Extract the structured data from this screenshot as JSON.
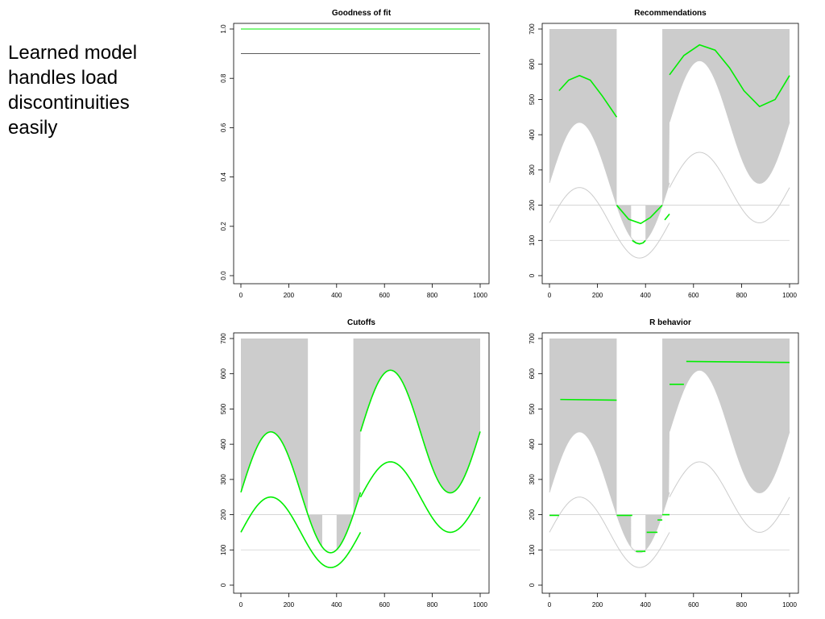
{
  "caption": {
    "lines": [
      "Learned model",
      "handles load",
      "discontinuities",
      "easily"
    ]
  },
  "colors": {
    "band": "#cccccc",
    "green": "#00ee00",
    "line_gray": "#444444",
    "light_curve": "#cccccc",
    "ref_line": "#d0d0d0",
    "axis": "#000000"
  },
  "chart_data": [
    {
      "type": "line",
      "title": "Goodness of fit",
      "xlim": [
        0,
        1000
      ],
      "ylim": [
        0,
        1
      ],
      "xticks": [
        "0",
        "200",
        "400",
        "600",
        "800",
        "1000"
      ],
      "yticks": [
        "0.0",
        "0.2",
        "0.4",
        "0.6",
        "0.8",
        "1.0"
      ],
      "series": [
        {
          "color": "green",
          "x": [
            0,
            1000
          ],
          "y": [
            1.0,
            1.0
          ]
        },
        {
          "color": "line_gray",
          "x": [
            0,
            1000
          ],
          "y": [
            0.9,
            0.9
          ]
        }
      ]
    },
    {
      "type": "area",
      "title": "Recommendations",
      "xlim": [
        0,
        1000
      ],
      "ylim": [
        0,
        700
      ],
      "xticks": [
        "0",
        "200",
        "400",
        "600",
        "800",
        "1000"
      ],
      "yticks": [
        "0",
        "100",
        "200",
        "300",
        "400",
        "500",
        "600",
        "700"
      ],
      "upper_band_gaps": [
        [
          280,
          470
        ]
      ],
      "lower_band_gaps": [
        [
          340,
          400
        ],
        [
          480,
          500
        ]
      ],
      "series": [
        {
          "color": "green",
          "segments": [
            {
              "x": [
                40,
                80,
                125,
                170,
                220,
                280
              ],
              "y": [
                525,
                555,
                568,
                555,
                510,
                450
              ]
            },
            {
              "x": [
                280,
                330,
                380,
                420,
                470
              ],
              "y": [
                200,
                160,
                148,
                165,
                200
              ]
            },
            {
              "x": [
                345,
                360,
                375,
                390,
                400
              ],
              "y": [
                100,
                93,
                90,
                93,
                100
              ]
            },
            {
              "x": [
                480,
                500
              ],
              "y": [
                158,
                175
              ]
            },
            {
              "x": [
                500,
                560,
                625,
                690,
                750,
                810,
                875,
                940,
                1000
              ],
              "y": [
                570,
                625,
                655,
                640,
                590,
                525,
                480,
                500,
                568
              ]
            }
          ]
        }
      ],
      "ref_lines": [
        200,
        100
      ]
    },
    {
      "type": "area",
      "title": "Cutoffs",
      "xlim": [
        0,
        1000
      ],
      "ylim": [
        0,
        700
      ],
      "xticks": [
        "0",
        "200",
        "400",
        "600",
        "800",
        "1000"
      ],
      "yticks": [
        "0",
        "100",
        "200",
        "300",
        "400",
        "500",
        "600",
        "700"
      ],
      "upper_band_gaps": [
        [
          280,
          470
        ]
      ],
      "lower_band_gaps": [
        [
          340,
          400
        ],
        [
          480,
          500
        ]
      ],
      "ref_lines": [
        200,
        100
      ],
      "green_curves": "outline"
    },
    {
      "type": "area",
      "title": "R behavior",
      "xlim": [
        0,
        1000
      ],
      "ylim": [
        0,
        700
      ],
      "xticks": [
        "0",
        "200",
        "400",
        "600",
        "800",
        "1000"
      ],
      "yticks": [
        "0",
        "100",
        "200",
        "300",
        "400",
        "500",
        "600",
        "700"
      ],
      "upper_band_gaps": [
        [
          280,
          470
        ]
      ],
      "lower_band_gaps": [
        [
          340,
          400
        ],
        [
          480,
          500
        ]
      ],
      "ref_lines": [
        200,
        100
      ],
      "series": [
        {
          "color": "green",
          "segments": [
            {
              "x": [
                0,
                40
              ],
              "y": [
                198,
                198
              ]
            },
            {
              "x": [
                45,
                280
              ],
              "y": [
                527,
                525
              ]
            },
            {
              "x": [
                280,
                345
              ],
              "y": [
                198,
                198
              ]
            },
            {
              "x": [
                360,
                400
              ],
              "y": [
                96,
                96
              ]
            },
            {
              "x": [
                405,
                450
              ],
              "y": [
                150,
                150
              ]
            },
            {
              "x": [
                450,
                470
              ],
              "y": [
                185,
                185
              ]
            },
            {
              "x": [
                470,
                500
              ],
              "y": [
                200,
                200
              ]
            },
            {
              "x": [
                500,
                560
              ],
              "y": [
                570,
                570
              ]
            },
            {
              "x": [
                570,
                1000
              ],
              "y": [
                635,
                632
              ]
            }
          ]
        }
      ]
    }
  ]
}
